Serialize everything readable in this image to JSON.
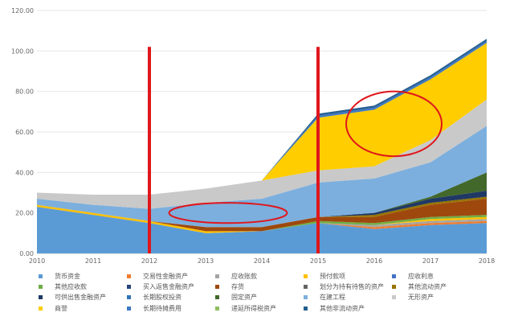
{
  "chart_data": {
    "type": "area",
    "stacked": true,
    "x": [
      "2010",
      "2011",
      "2012",
      "2013",
      "2014",
      "2015",
      "2016",
      "2017",
      "2018"
    ],
    "ylim": [
      0,
      120
    ],
    "yticks": [
      "0.00",
      "20.00",
      "40.00",
      "60.00",
      "80.00",
      "100.00",
      "120.00"
    ],
    "grid": true,
    "legend_position": "bottom",
    "series": [
      {
        "name": "货币资金",
        "color": "#5b9bd5",
        "values": [
          23,
          19,
          15,
          10,
          11,
          15,
          12,
          14,
          15
        ]
      },
      {
        "name": "交易性金融资产",
        "color": "#ed7d31",
        "values": [
          0,
          0,
          0,
          0,
          0,
          0,
          1,
          1,
          1
        ]
      },
      {
        "name": "应收账款",
        "color": "#a5a5a5",
        "values": [
          0,
          0,
          0,
          0,
          0,
          0,
          1,
          1,
          1
        ]
      },
      {
        "name": "预付款项",
        "color": "#ffc000",
        "values": [
          1,
          1,
          1,
          1,
          0,
          0,
          0,
          1,
          1
        ]
      },
      {
        "name": "应收利息",
        "color": "#4472c4",
        "values": [
          0,
          0,
          0,
          0,
          0,
          0,
          0,
          0,
          0
        ]
      },
      {
        "name": "其他应收款",
        "color": "#70ad47",
        "values": [
          0,
          0,
          0,
          0,
          0,
          1,
          1,
          1,
          1
        ]
      },
      {
        "name": "买入返售金融资产",
        "color": "#264478",
        "values": [
          0,
          0,
          0,
          0,
          0,
          0,
          0,
          0,
          0
        ]
      },
      {
        "name": "存货",
        "color": "#9e480e",
        "values": [
          0,
          0,
          0,
          2,
          2,
          2,
          3,
          6,
          8
        ]
      },
      {
        "name": "划分为持有待售的资产",
        "color": "#636363",
        "values": [
          0,
          0,
          0,
          0,
          0,
          0,
          0,
          0,
          0
        ]
      },
      {
        "name": "其他流动资产",
        "color": "#997300",
        "values": [
          0,
          0,
          0,
          0,
          0,
          0,
          1,
          1,
          1
        ]
      },
      {
        "name": "可供出售金融资产",
        "color": "#1f3864",
        "values": [
          0,
          0,
          0,
          0,
          0,
          0,
          1,
          2,
          3
        ]
      },
      {
        "name": "长期股权投资",
        "color": "#2e75b6",
        "values": [
          0,
          0,
          0,
          0,
          0,
          0,
          0,
          0,
          0
        ]
      },
      {
        "name": "固定资产",
        "color": "#43682b",
        "values": [
          0,
          0,
          0,
          0,
          0,
          0,
          0,
          1,
          9
        ]
      },
      {
        "name": "在建工程",
        "color": "#7cafdd",
        "values": [
          3,
          4,
          6,
          12,
          14,
          17,
          17,
          17,
          23
        ]
      },
      {
        "name": "无形资产",
        "color": "#c9c9c9",
        "values": [
          3,
          5,
          7,
          7,
          9,
          6,
          6,
          11,
          13
        ]
      },
      {
        "name": "商誉",
        "color": "#ffcd00",
        "values": [
          0,
          0,
          0,
          0,
          0,
          26,
          28,
          30,
          28
        ]
      },
      {
        "name": "长期待摊费用",
        "color": "#3e78c4",
        "values": [
          0,
          0,
          0,
          0,
          0,
          1,
          1,
          1,
          1
        ]
      },
      {
        "name": "递延所得税资产",
        "color": "#8fbf60",
        "values": [
          0,
          0,
          0,
          0,
          0,
          0,
          0,
          0,
          0
        ]
      },
      {
        "name": "其他非流动资产",
        "color": "#255e91",
        "values": [
          0,
          0,
          0,
          0,
          0,
          1,
          1,
          1,
          1
        ]
      }
    ],
    "annotations": {
      "vertical_lines": [
        {
          "x": "2012",
          "color": "#e0161b"
        },
        {
          "x": "2015",
          "color": "#e0161b"
        }
      ],
      "ellipses": [
        {
          "x_center": 2016.35,
          "y_center": 64,
          "x_radius": 0.85,
          "y_radius": 16,
          "color": "#e0161b"
        },
        {
          "x_center": 2013.4,
          "y_center": 20,
          "x_radius": 1.05,
          "y_radius": 5,
          "color": "#e0161b"
        }
      ]
    }
  }
}
